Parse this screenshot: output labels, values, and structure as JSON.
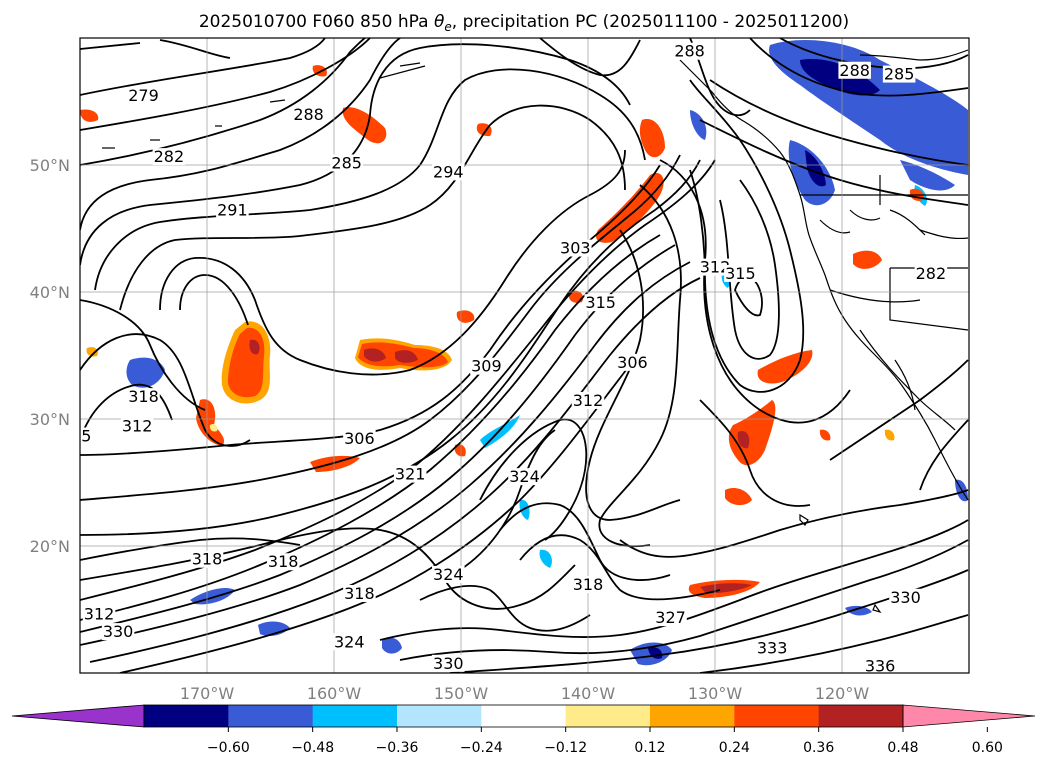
{
  "title": "2025010700 F060 850 hPa θ_e, precipitation PC (2025011100 - 2025011200)",
  "title_parts": {
    "before": "2025010700 F060 850 hPa ",
    "theta": "θ",
    "sub": "e",
    "after": ", precipitation PC (2025011100 - 2025011200)"
  },
  "map": {
    "lon_range": [
      -180,
      -110
    ],
    "lat_range": [
      10,
      60
    ],
    "lat_ticks": [
      {
        "value": 50,
        "label": "50°N"
      },
      {
        "value": 40,
        "label": "40°N"
      },
      {
        "value": 30,
        "label": "30°N"
      },
      {
        "value": 20,
        "label": "20°N"
      }
    ],
    "lon_ticks": [
      {
        "value": -170,
        "label": "170°W"
      },
      {
        "value": -160,
        "label": "160°W"
      },
      {
        "value": -150,
        "label": "150°W"
      },
      {
        "value": -140,
        "label": "140°W"
      },
      {
        "value": -130,
        "label": "130°W"
      },
      {
        "value": -120,
        "label": "120°W"
      }
    ],
    "contour_labels": [
      {
        "text": "279",
        "lon": -175,
        "lat": 55.5
      },
      {
        "text": "282",
        "lon": -173,
        "lat": 50.7
      },
      {
        "text": "288",
        "lon": -162,
        "lat": 54
      },
      {
        "text": "285",
        "lon": -159,
        "lat": 50.2
      },
      {
        "text": "294",
        "lon": -151,
        "lat": 49.5
      },
      {
        "text": "291",
        "lon": -168,
        "lat": 46.5
      },
      {
        "text": "303",
        "lon": -141,
        "lat": 43.5
      },
      {
        "text": "315",
        "lon": -139,
        "lat": 39.2
      },
      {
        "text": "312",
        "lon": -130,
        "lat": 42
      },
      {
        "text": "315",
        "lon": -128,
        "lat": 41.5
      },
      {
        "text": "306",
        "lon": -136.5,
        "lat": 34.5
      },
      {
        "text": "309",
        "lon": -148,
        "lat": 34.2
      },
      {
        "text": "312",
        "lon": -140,
        "lat": 31.5
      },
      {
        "text": "306",
        "lon": -158,
        "lat": 28.5
      },
      {
        "text": "321",
        "lon": -154,
        "lat": 25.7
      },
      {
        "text": "324",
        "lon": -145,
        "lat": 25.5
      },
      {
        "text": "318",
        "lon": -175,
        "lat": 31.8
      },
      {
        "text": "312",
        "lon": -175.5,
        "lat": 29.5
      },
      {
        "text": "5",
        "lon": -179.5,
        "lat": 28.7
      },
      {
        "text": "318",
        "lon": -170,
        "lat": 19
      },
      {
        "text": "318",
        "lon": -164,
        "lat": 18.8
      },
      {
        "text": "318",
        "lon": -158,
        "lat": 16.3
      },
      {
        "text": "324",
        "lon": -151,
        "lat": 17.8
      },
      {
        "text": "318",
        "lon": -140,
        "lat": 17
      },
      {
        "text": "312",
        "lon": -178.5,
        "lat": 14.7
      },
      {
        "text": "330",
        "lon": -177,
        "lat": 13.3
      },
      {
        "text": "324",
        "lon": -158.8,
        "lat": 12.5
      },
      {
        "text": "327",
        "lon": -133.5,
        "lat": 14.4
      },
      {
        "text": "333",
        "lon": -125.5,
        "lat": 12
      },
      {
        "text": "330",
        "lon": -151,
        "lat": 10.8
      },
      {
        "text": "336",
        "lon": -117,
        "lat": 10.6
      },
      {
        "text": "330",
        "lon": -115,
        "lat": 16
      },
      {
        "text": "288",
        "lon": -132,
        "lat": 59
      },
      {
        "text": "288",
        "lon": -119,
        "lat": 57.5
      },
      {
        "text": "285",
        "lon": -115.5,
        "lat": 57.2
      },
      {
        "text": "282",
        "lon": -113,
        "lat": 41.5
      }
    ]
  },
  "colorbar": {
    "colors": [
      "#9933cc",
      "#000080",
      "#3a5bd6",
      "#00bfff",
      "#b3e5ff",
      "#ffffff",
      "#ffeb8a",
      "#ffa500",
      "#ff4500",
      "#b22222",
      "#ff88aa"
    ],
    "tick_labels": [
      "−0.60",
      "−0.48",
      "−0.36",
      "−0.24",
      "−0.12",
      "0.12",
      "0.24",
      "0.36",
      "0.48",
      "0.60"
    ]
  }
}
